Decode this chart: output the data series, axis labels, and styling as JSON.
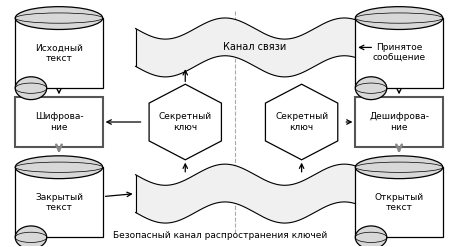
{
  "bg_color": "#ffffff",
  "fig_width": 4.63,
  "fig_height": 2.47,
  "bottom_label": "Безопасный канал распространения ключей",
  "canal_label": "Канал связи",
  "left_scroll1_label": "Исходный\nтекст",
  "left_rect_label": "Шифрова-\nние",
  "left_scroll2_label": "Закрытый\nтекст",
  "center_left_hex_label": "Секретный\nключ",
  "center_right_hex_label": "Секретный\nключ",
  "right_scroll1_label": "Принятое\nсообщение",
  "right_rect_label": "Дешифрова-\nние",
  "right_scroll2_label": "Открытый\nтекст"
}
